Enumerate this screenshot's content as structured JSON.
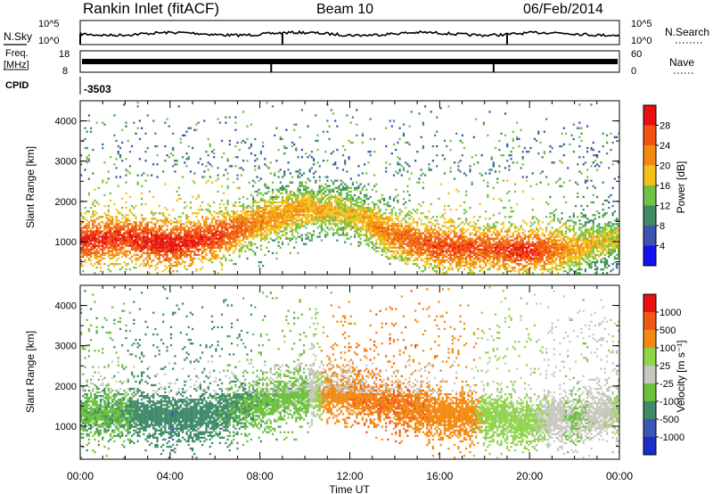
{
  "header": {
    "station": "Rankin Inlet (fitACF)",
    "beam": "Beam 10",
    "date": "06/Feb/2014"
  },
  "status_panels": {
    "nsky_label": "N.Sky",
    "nsky_scale_top": "10^5",
    "nsky_scale_bottom": "10^0",
    "nsearch_label": "N.Search",
    "freq_label_line1": "Freq.",
    "freq_label_line2": "[MHz]",
    "freq_tick_top": "18",
    "freq_tick_bottom": "8",
    "nave_label": "Nave",
    "nave_tick_top": "60",
    "nave_tick_bottom": "0",
    "cpid_label": "CPID",
    "cpid_value": "-3503"
  },
  "colorbars": {
    "power": {
      "label": "Power [dB]",
      "ticks": [
        "4",
        "8",
        "12",
        "16",
        "20",
        "24",
        "28"
      ],
      "colors": [
        "#1212f0",
        "#3a54b0",
        "#3f8a63",
        "#6fc246",
        "#f2c21a",
        "#f28a12",
        "#f25212",
        "#e81010"
      ]
    },
    "velocity": {
      "label": "Velocity [m s⁻¹]",
      "ticks": [
        "1000",
        "500",
        "100",
        "25",
        "-25",
        "-100",
        "-500",
        "-1000"
      ],
      "colors": [
        "#1c2ec8",
        "#3a58b4",
        "#3f8a68",
        "#6cc03e",
        "#c8c8c0",
        "#8fd44a",
        "#f28a12",
        "#f05818",
        "#e81010"
      ]
    }
  },
  "axes": {
    "ylabel": "Slant Range [km]",
    "xlabel": "Time UT",
    "y_ticks": [
      "1000",
      "2000",
      "3000",
      "4000"
    ],
    "x_ticks": [
      "00:00",
      "04:00",
      "08:00",
      "12:00",
      "16:00",
      "20:00",
      "00:00"
    ]
  },
  "chart_data": [
    {
      "type": "heatmap",
      "title": "",
      "quantity": "Power",
      "unit": "dB",
      "xlabel": "Time UT",
      "ylabel": "Slant Range [km]",
      "xlim": [
        0,
        24
      ],
      "ylim": [
        180,
        4500
      ],
      "clim": [
        0,
        30
      ],
      "x_ticks": [
        "00:00",
        "04:00",
        "08:00",
        "12:00",
        "16:00",
        "20:00",
        "00:00"
      ],
      "y_ticks": [
        1000,
        2000,
        3000,
        4000
      ],
      "colorbar_ticks": [
        4,
        8,
        12,
        16,
        20,
        24,
        28
      ],
      "approx_profile": {
        "hours": [
          0,
          2,
          4,
          6,
          8,
          10,
          12,
          14,
          16,
          18,
          20,
          22,
          24
        ],
        "main_band_center_km": [
          1000,
          1100,
          900,
          1100,
          1500,
          1800,
          1700,
          1100,
          850,
          800,
          750,
          800,
          1100
        ],
        "peak_power_dB": [
          29,
          28,
          30,
          28,
          22,
          20,
          18,
          24,
          27,
          26,
          28,
          20,
          16
        ]
      }
    },
    {
      "type": "heatmap",
      "title": "",
      "quantity": "Velocity",
      "unit": "m s^-1",
      "xlabel": "Time UT",
      "ylabel": "Slant Range [km]",
      "xlim": [
        0,
        24
      ],
      "ylim": [
        180,
        4500
      ],
      "colorbar_ticks": [
        1000,
        500,
        100,
        25,
        -25,
        -100,
        -500,
        -1000
      ],
      "x_ticks": [
        "00:00",
        "04:00",
        "08:00",
        "12:00",
        "16:00",
        "20:00",
        "00:00"
      ],
      "y_ticks": [
        1000,
        2000,
        3000,
        4000
      ],
      "approx_profile": {
        "hours": [
          0,
          2,
          4,
          6,
          8,
          10,
          12,
          14,
          16,
          18,
          20,
          22,
          24
        ],
        "main_band_center_km": [
          1300,
          1300,
          1200,
          1300,
          1600,
          1800,
          1800,
          1500,
          1300,
          1200,
          1100,
          1200,
          1400
        ],
        "typical_velocity_ms": [
          80,
          90,
          400,
          150,
          70,
          60,
          -400,
          -450,
          -350,
          -60,
          -40,
          30,
          -30
        ]
      }
    }
  ]
}
